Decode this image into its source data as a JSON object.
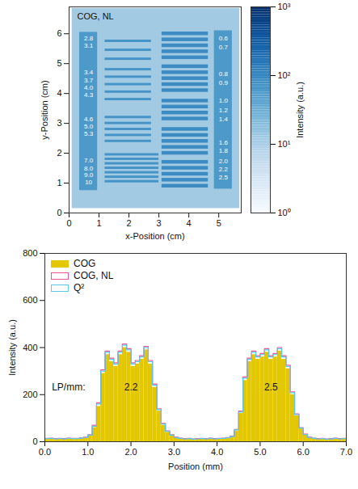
{
  "chart_data": [
    {
      "type": "heatmap",
      "title": "COG, NL",
      "x_label": "x-Position (cm)",
      "y_label": "y-Position (cm)",
      "xlim": [
        0,
        5.75
      ],
      "ylim": [
        0,
        6.9
      ],
      "xticks": [
        0,
        1,
        2,
        3,
        4,
        5
      ],
      "yticks": [
        0,
        1,
        2,
        3,
        4,
        5,
        6
      ],
      "color": "blues",
      "cells": [
        [
          0.1,
          5.7,
          0.15,
          6.85,
          12
        ],
        [
          0.35,
          0.95,
          0.75,
          6.05,
          60
        ],
        [
          4.85,
          5.45,
          0.8,
          6.1,
          60
        ],
        [
          1.2,
          2.75,
          5.71,
          5.79,
          70
        ],
        [
          1.2,
          2.75,
          5.41,
          5.49,
          70
        ],
        [
          1.2,
          2.75,
          5.11,
          5.19,
          70
        ],
        [
          1.2,
          2.75,
          4.76,
          4.84,
          70
        ],
        [
          1.2,
          2.75,
          4.51,
          4.59,
          70
        ],
        [
          1.2,
          2.75,
          4.26,
          4.34,
          70
        ],
        [
          1.2,
          2.75,
          4.01,
          4.09,
          70
        ],
        [
          1.2,
          2.75,
          3.76,
          3.84,
          70
        ],
        [
          1.2,
          2.75,
          3.16,
          3.24,
          70
        ],
        [
          1.2,
          2.75,
          2.96,
          3.04,
          70
        ],
        [
          1.2,
          2.75,
          2.76,
          2.84,
          70
        ],
        [
          1.2,
          2.75,
          2.56,
          2.64,
          70
        ],
        [
          1.2,
          2.75,
          2.36,
          2.44,
          70
        ],
        [
          1.2,
          3.0,
          1.91,
          1.99,
          70
        ],
        [
          1.2,
          3.0,
          1.76,
          1.84,
          70
        ],
        [
          1.2,
          3.0,
          1.61,
          1.69,
          70
        ],
        [
          1.2,
          3.0,
          1.46,
          1.54,
          70
        ],
        [
          1.2,
          3.0,
          1.31,
          1.39,
          70
        ],
        [
          1.2,
          3.0,
          1.16,
          1.24,
          70
        ],
        [
          1.2,
          3.0,
          1.01,
          1.09,
          70
        ],
        [
          3.1,
          4.65,
          5.94,
          6.06,
          90
        ],
        [
          3.1,
          4.65,
          5.74,
          5.86,
          90
        ],
        [
          3.1,
          4.65,
          5.54,
          5.66,
          90
        ],
        [
          3.1,
          4.65,
          5.34,
          5.46,
          90
        ],
        [
          3.1,
          4.65,
          5.14,
          5.26,
          90
        ],
        [
          3.1,
          4.65,
          4.84,
          4.96,
          90
        ],
        [
          3.1,
          4.65,
          4.64,
          4.76,
          90
        ],
        [
          3.1,
          4.65,
          4.44,
          4.56,
          90
        ],
        [
          3.1,
          4.65,
          4.24,
          4.36,
          90
        ],
        [
          3.1,
          4.65,
          4.04,
          4.16,
          90
        ],
        [
          3.1,
          4.65,
          3.69,
          3.81,
          90
        ],
        [
          3.1,
          4.65,
          3.49,
          3.61,
          90
        ],
        [
          3.1,
          4.65,
          3.29,
          3.41,
          90
        ],
        [
          3.1,
          4.65,
          3.09,
          3.21,
          90
        ],
        [
          3.1,
          4.65,
          2.74,
          2.86,
          90
        ],
        [
          3.1,
          4.65,
          2.54,
          2.66,
          90
        ],
        [
          3.1,
          4.65,
          2.34,
          2.46,
          90
        ],
        [
          3.1,
          4.65,
          2.14,
          2.26,
          90
        ],
        [
          3.1,
          4.65,
          1.94,
          2.06,
          90
        ],
        [
          3.1,
          4.65,
          1.64,
          1.76,
          90
        ],
        [
          3.1,
          4.65,
          1.44,
          1.56,
          90
        ],
        [
          3.1,
          4.65,
          1.24,
          1.36,
          90
        ],
        [
          3.1,
          4.65,
          1.04,
          1.16,
          90
        ],
        [
          3.1,
          4.65,
          0.84,
          0.96,
          90
        ]
      ],
      "annotations": [
        {
          "text": "2.8",
          "x": 0.65,
          "y": 5.85
        },
        {
          "text": "3.1",
          "x": 0.65,
          "y": 5.6
        },
        {
          "text": "3.4",
          "x": 0.65,
          "y": 4.7
        },
        {
          "text": "3.7",
          "x": 0.65,
          "y": 4.45
        },
        {
          "text": "4.0",
          "x": 0.65,
          "y": 4.2
        },
        {
          "text": "4.3",
          "x": 0.65,
          "y": 3.95
        },
        {
          "text": "4.6",
          "x": 0.65,
          "y": 3.15
        },
        {
          "text": "5.0",
          "x": 0.65,
          "y": 2.9
        },
        {
          "text": "5.3",
          "x": 0.65,
          "y": 2.65
        },
        {
          "text": "7.0",
          "x": 0.65,
          "y": 1.75
        },
        {
          "text": "8.0",
          "x": 0.65,
          "y": 1.5
        },
        {
          "text": "9.0",
          "x": 0.65,
          "y": 1.27
        },
        {
          "text": "10",
          "x": 0.65,
          "y": 1.03
        },
        {
          "text": "0.6",
          "x": 5.15,
          "y": 5.85
        },
        {
          "text": "0.7",
          "x": 5.15,
          "y": 5.55
        },
        {
          "text": "0.8",
          "x": 5.15,
          "y": 4.65
        },
        {
          "text": "0.9",
          "x": 5.15,
          "y": 4.35
        },
        {
          "text": "1.0",
          "x": 5.15,
          "y": 3.75
        },
        {
          "text": "1.2",
          "x": 5.15,
          "y": 3.45
        },
        {
          "text": "1.4",
          "x": 5.15,
          "y": 3.15
        },
        {
          "text": "1.6",
          "x": 5.15,
          "y": 2.35
        },
        {
          "text": "1.8",
          "x": 5.15,
          "y": 2.08
        },
        {
          "text": "2.0",
          "x": 5.15,
          "y": 1.72
        },
        {
          "text": "2.2",
          "x": 5.15,
          "y": 1.45
        },
        {
          "text": "2.5",
          "x": 5.15,
          "y": 1.2
        }
      ],
      "colorbar": {
        "label": "Intensity (a.u.)",
        "range": [
          1,
          1000
        ],
        "log": true,
        "ticks": [
          {
            "value": 1,
            "label": "10⁰"
          },
          {
            "value": 10,
            "label": "10¹"
          },
          {
            "value": 100,
            "label": "10²"
          },
          {
            "value": 1000,
            "label": "10³"
          }
        ]
      }
    },
    {
      "type": "histogram",
      "x_label": "Position (mm)",
      "y_label": "Intensity (a.u.)",
      "xlim": [
        0,
        7
      ],
      "ylim": [
        0,
        800
      ],
      "xticks": [
        {
          "value": 0,
          "label": "0.0"
        },
        {
          "value": 1,
          "label": "1.0"
        },
        {
          "value": 2,
          "label": "2.0"
        },
        {
          "value": 3,
          "label": "3.0"
        },
        {
          "value": 4,
          "label": "4.0"
        },
        {
          "value": 5,
          "label": "5.0"
        },
        {
          "value": 6,
          "label": "6.0"
        },
        {
          "value": 7,
          "label": "7.0"
        }
      ],
      "yticks": [
        0,
        200,
        400,
        600,
        800
      ],
      "legend": "upper left",
      "bins": [
        0.0,
        0.1,
        0.2,
        0.3,
        0.4,
        0.5,
        0.6,
        0.7,
        0.8,
        0.9,
        1.0,
        1.1,
        1.2,
        1.3,
        1.4,
        1.5,
        1.6,
        1.7,
        1.8,
        1.9,
        2.0,
        2.1,
        2.2,
        2.3,
        2.4,
        2.5,
        2.6,
        2.7,
        2.8,
        2.9,
        3.0,
        3.1,
        3.2,
        3.3,
        3.4,
        3.5,
        3.6,
        3.7,
        3.8,
        3.9,
        4.0,
        4.1,
        4.2,
        4.3,
        4.4,
        4.5,
        4.6,
        4.7,
        4.8,
        4.9,
        5.0,
        5.1,
        5.2,
        5.3,
        5.4,
        5.5,
        5.6,
        5.7,
        5.8,
        5.9,
        6.0,
        6.1,
        6.2,
        6.3,
        6.4,
        6.5,
        6.6,
        6.7,
        6.8,
        6.9,
        7.0
      ],
      "series": [
        {
          "name": "COG",
          "type": "bar",
          "color": "#e3c800",
          "values": [
            10,
            12,
            9,
            11,
            10,
            12,
            10,
            11,
            13,
            15,
            25,
            60,
            150,
            290,
            370,
            340,
            320,
            370,
            400,
            380,
            320,
            330,
            350,
            390,
            330,
            230,
            130,
            70,
            40,
            25,
            16,
            12,
            10,
            11,
            9,
            10,
            11,
            10,
            12,
            10,
            11,
            12,
            15,
            20,
            45,
            120,
            260,
            340,
            370,
            350,
            360,
            380,
            350,
            360,
            385,
            350,
            310,
            200,
            110,
            55,
            28,
            16,
            12,
            10,
            11,
            9,
            10,
            12,
            10,
            11
          ]
        },
        {
          "name": "COG, NL",
          "type": "step",
          "color": "#e8559a",
          "values": [
            14,
            15,
            13,
            14,
            13,
            15,
            14,
            14,
            16,
            19,
            30,
            70,
            165,
            305,
            385,
            355,
            335,
            385,
            415,
            395,
            335,
            345,
            365,
            405,
            345,
            245,
            140,
            78,
            46,
            30,
            19,
            15,
            13,
            14,
            12,
            13,
            14,
            13,
            15,
            13,
            14,
            15,
            18,
            24,
            52,
            130,
            275,
            355,
            385,
            365,
            375,
            395,
            365,
            375,
            400,
            365,
            325,
            212,
            118,
            60,
            32,
            19,
            15,
            13,
            14,
            12,
            13,
            15,
            13,
            14
          ]
        },
        {
          "name": "Q²",
          "type": "step",
          "color": "#5bc8e8",
          "values": [
            13,
            14,
            12,
            13,
            12,
            14,
            13,
            13,
            15,
            18,
            28,
            66,
            160,
            300,
            380,
            350,
            330,
            380,
            410,
            390,
            330,
            340,
            360,
            400,
            340,
            240,
            136,
            75,
            44,
            28,
            18,
            14,
            12,
            13,
            11,
            12,
            13,
            12,
            14,
            12,
            13,
            14,
            17,
            22,
            50,
            126,
            270,
            350,
            380,
            360,
            370,
            390,
            360,
            370,
            395,
            360,
            320,
            208,
            115,
            58,
            30,
            18,
            14,
            12,
            13,
            11,
            12,
            14,
            12,
            13
          ]
        }
      ],
      "annotations": [
        {
          "text": "LP/mm:",
          "x": 0.55,
          "y": 230
        },
        {
          "text": "2.2",
          "x": 2.0,
          "y": 230
        },
        {
          "text": "2.5",
          "x": 5.25,
          "y": 230
        }
      ]
    }
  ]
}
